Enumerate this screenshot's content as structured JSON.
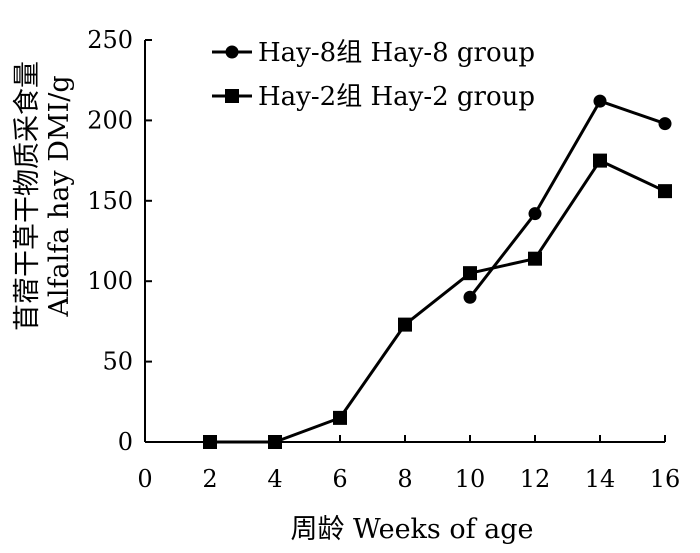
{
  "chart_data": {
    "type": "line",
    "xlabel": "周龄  Weeks of age",
    "ylabel_cn": "苜蓿干草干物质采食量",
    "ylabel_en": "Alfalfa hay DMI/g",
    "xlim": [
      0,
      16
    ],
    "ylim": [
      0,
      250
    ],
    "x_ticks": [
      0,
      2,
      4,
      6,
      8,
      10,
      12,
      14,
      16
    ],
    "y_ticks": [
      0,
      50,
      100,
      150,
      200,
      250
    ],
    "grid": false,
    "legend_position": "top-left",
    "series": [
      {
        "name": "Hay-8组  Hay-8 group",
        "marker": "circle",
        "color": "#000000",
        "x": [
          10,
          12,
          14,
          16
        ],
        "y": [
          90,
          142,
          212,
          198
        ]
      },
      {
        "name": "Hay-2组  Hay-2 group",
        "marker": "square",
        "color": "#000000",
        "x": [
          2,
          4,
          6,
          8,
          10,
          12,
          14,
          16
        ],
        "y": [
          0,
          0,
          15,
          73,
          105,
          114,
          175,
          156
        ]
      }
    ]
  }
}
